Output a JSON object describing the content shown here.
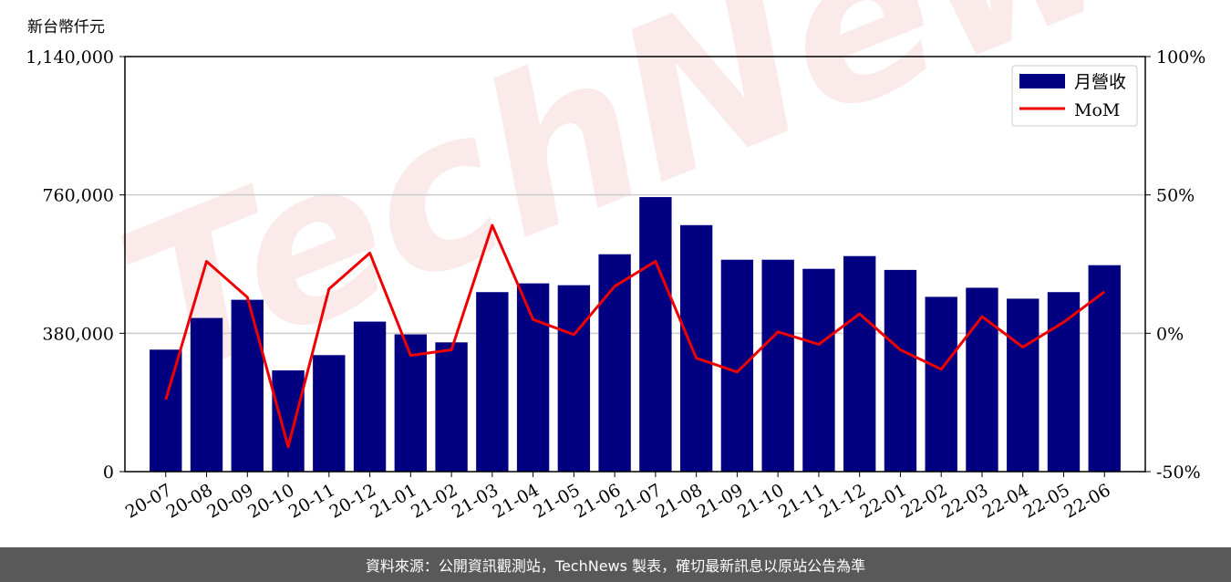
{
  "chart_data": {
    "type": "bar",
    "unit_label": "新台幣仟元",
    "categories": [
      "20-07",
      "20-08",
      "20-09",
      "20-10",
      "20-11",
      "20-12",
      "21-01",
      "21-02",
      "21-03",
      "21-04",
      "21-05",
      "21-06",
      "21-07",
      "21-08",
      "21-09",
      "21-10",
      "21-11",
      "21-12",
      "22-01",
      "22-02",
      "22-03",
      "22-04",
      "22-05",
      "22-06"
    ],
    "series": [
      {
        "name": "月營收",
        "kind": "bar",
        "axis": "left",
        "color": "#000080",
        "values": [
          335000,
          422000,
          472000,
          278000,
          320000,
          412000,
          377000,
          355000,
          493000,
          517000,
          512000,
          597000,
          754000,
          677000,
          582000,
          582000,
          557000,
          592000,
          554000,
          480000,
          505000,
          475000,
          493000,
          567000
        ]
      },
      {
        "name": "MoM",
        "kind": "line",
        "axis": "right",
        "color": "#ee0000",
        "values": [
          -24,
          26,
          13,
          -41,
          16,
          29,
          -8,
          -6,
          39,
          5,
          -0.5,
          17,
          26,
          -9,
          -14,
          0.5,
          -4,
          7,
          -6,
          -13,
          6,
          -5,
          4,
          15
        ]
      }
    ],
    "yticks_left": [
      "0",
      "380,000",
      "760,000",
      "1,140,000"
    ],
    "ylim_left": [
      0,
      1140000
    ],
    "yticks_right": [
      "-50%",
      "0%",
      "50%",
      "100%"
    ],
    "ylim_right": [
      -50,
      100
    ],
    "grid": true,
    "legend_position": "top-right"
  },
  "watermark": "TechNews",
  "footer": "資料來源：公開資訊觀測站，TechNews 製表，確切最新訊息以原站公告為準"
}
